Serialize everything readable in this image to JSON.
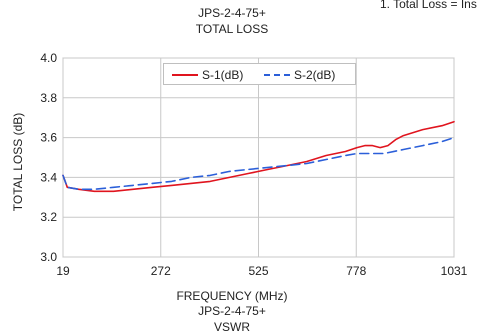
{
  "header_note": "1. Total Loss = Ins",
  "chart_data": [
    {
      "type": "line",
      "title_line1": "JPS-2-4-75+",
      "title_line2": "TOTAL   LOSS",
      "xlabel": "FREQUENCY (MHz)",
      "ylabel": "TOTAL  LOSS (dB)",
      "xlim": [
        19,
        1031
      ],
      "ylim": [
        3.0,
        4.0
      ],
      "xticks": [
        "19",
        "272",
        "525",
        "778",
        "1031"
      ],
      "yticks": [
        "3.0",
        "3.2",
        "3.4",
        "3.6",
        "3.8",
        "4.0"
      ],
      "grid": true,
      "legend_position": "top-center",
      "series": [
        {
          "name": "S-1(dB)",
          "color": "#e0141e",
          "style": "solid",
          "x": [
            19,
            30,
            60,
            100,
            150,
            200,
            250,
            300,
            350,
            400,
            450,
            500,
            550,
            600,
            650,
            700,
            750,
            780,
            800,
            820,
            840,
            860,
            880,
            900,
            950,
            1000,
            1031
          ],
          "y": [
            3.41,
            3.35,
            3.34,
            3.33,
            3.33,
            3.34,
            3.35,
            3.36,
            3.37,
            3.38,
            3.4,
            3.42,
            3.44,
            3.46,
            3.48,
            3.51,
            3.53,
            3.55,
            3.56,
            3.56,
            3.55,
            3.56,
            3.59,
            3.61,
            3.64,
            3.66,
            3.68
          ]
        },
        {
          "name": "S-2(dB)",
          "color": "#2b5fd9",
          "style": "dashed",
          "x": [
            19,
            30,
            60,
            100,
            150,
            200,
            250,
            300,
            350,
            400,
            450,
            500,
            550,
            600,
            650,
            700,
            750,
            780,
            800,
            850,
            900,
            950,
            1000,
            1031
          ],
          "y": [
            3.41,
            3.35,
            3.34,
            3.34,
            3.35,
            3.36,
            3.37,
            3.38,
            3.4,
            3.41,
            3.43,
            3.44,
            3.45,
            3.46,
            3.47,
            3.49,
            3.51,
            3.52,
            3.52,
            3.52,
            3.54,
            3.56,
            3.58,
            3.6
          ]
        }
      ]
    },
    {
      "type": "line",
      "title_line1": "JPS-2-4-75+",
      "title_line2": "VSWR"
    }
  ]
}
